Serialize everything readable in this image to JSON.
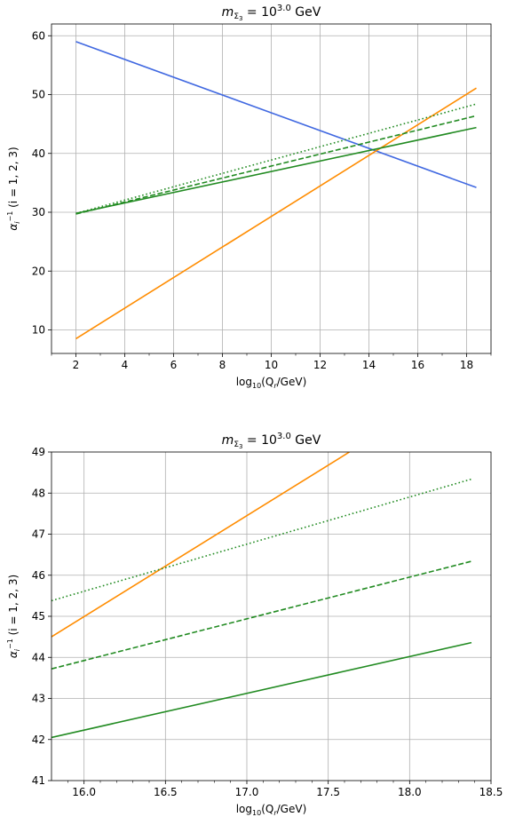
{
  "chart_data": [
    {
      "type": "line",
      "title_prefix": "m",
      "title_sub": "Σ",
      "title_subsub": "3",
      "title_eq": " = 10",
      "title_exp": "3.0",
      "title_unit": " GeV",
      "xlabel_pre": "log",
      "xlabel_sub": "10",
      "xlabel_mid": "(Q",
      "xlabel_sub2": "r",
      "xlabel_post": "/GeV)",
      "ylabel_main": "α",
      "ylabel_sub": "i",
      "ylabel_sup": "−1",
      "ylabel_post": " (i = 1, 2, 3)",
      "xlim": [
        1,
        19
      ],
      "ylim": [
        6,
        62
      ],
      "xticks": [
        2,
        4,
        6,
        8,
        10,
        12,
        14,
        16,
        18
      ],
      "yticks": [
        10,
        20,
        30,
        40,
        50,
        60
      ],
      "grid": true,
      "series": [
        {
          "color": "#4169e1",
          "style": "solid",
          "x": [
            2,
            18.4
          ],
          "y": [
            59.0,
            34.2
          ]
        },
        {
          "color": "#ff8c00",
          "style": "solid",
          "x": [
            2,
            18.4
          ],
          "y": [
            8.5,
            51.1
          ]
        },
        {
          "color": "#228b22",
          "style": "solid",
          "x": [
            2,
            18.4
          ],
          "y": [
            29.8,
            44.4
          ]
        },
        {
          "color": "#228b22",
          "style": "dashed",
          "x": [
            2,
            18.4
          ],
          "y": [
            29.7,
            46.4
          ]
        },
        {
          "color": "#228b22",
          "style": "dotted",
          "x": [
            2,
            18.4
          ],
          "y": [
            29.8,
            48.4
          ]
        }
      ]
    },
    {
      "type": "line",
      "title_prefix": "m",
      "title_sub": "Σ",
      "title_subsub": "3",
      "title_eq": " = 10",
      "title_exp": "3.0",
      "title_unit": " GeV",
      "xlabel_pre": "log",
      "xlabel_sub": "10",
      "xlabel_mid": "(Q",
      "xlabel_sub2": "r",
      "xlabel_post": "/GeV)",
      "ylabel_main": "α",
      "ylabel_sub": "i",
      "ylabel_sup": "−1",
      "ylabel_post": " (i = 1, 2, 3)",
      "xlim": [
        15.8,
        18.5
      ],
      "ylim": [
        41,
        49
      ],
      "xticks": [
        16.0,
        16.5,
        17.0,
        17.5,
        18.0,
        18.5
      ],
      "xtick_labels": [
        "16.0",
        "16.5",
        "17.0",
        "17.5",
        "18.0",
        "18.5"
      ],
      "yticks": [
        41,
        42,
        43,
        44,
        45,
        46,
        47,
        48,
        49
      ],
      "grid": true,
      "series": [
        {
          "color": "#ff8c00",
          "style": "solid",
          "x": [
            15.8,
            17.63
          ],
          "y": [
            44.5,
            49.0
          ]
        },
        {
          "color": "#228b22",
          "style": "solid",
          "x": [
            15.8,
            18.38
          ],
          "y": [
            42.05,
            44.36
          ]
        },
        {
          "color": "#228b22",
          "style": "dashed",
          "x": [
            15.8,
            18.38
          ],
          "y": [
            43.72,
            46.34
          ]
        },
        {
          "color": "#228b22",
          "style": "dotted",
          "x": [
            15.8,
            18.38
          ],
          "y": [
            45.38,
            48.34
          ]
        }
      ]
    }
  ]
}
